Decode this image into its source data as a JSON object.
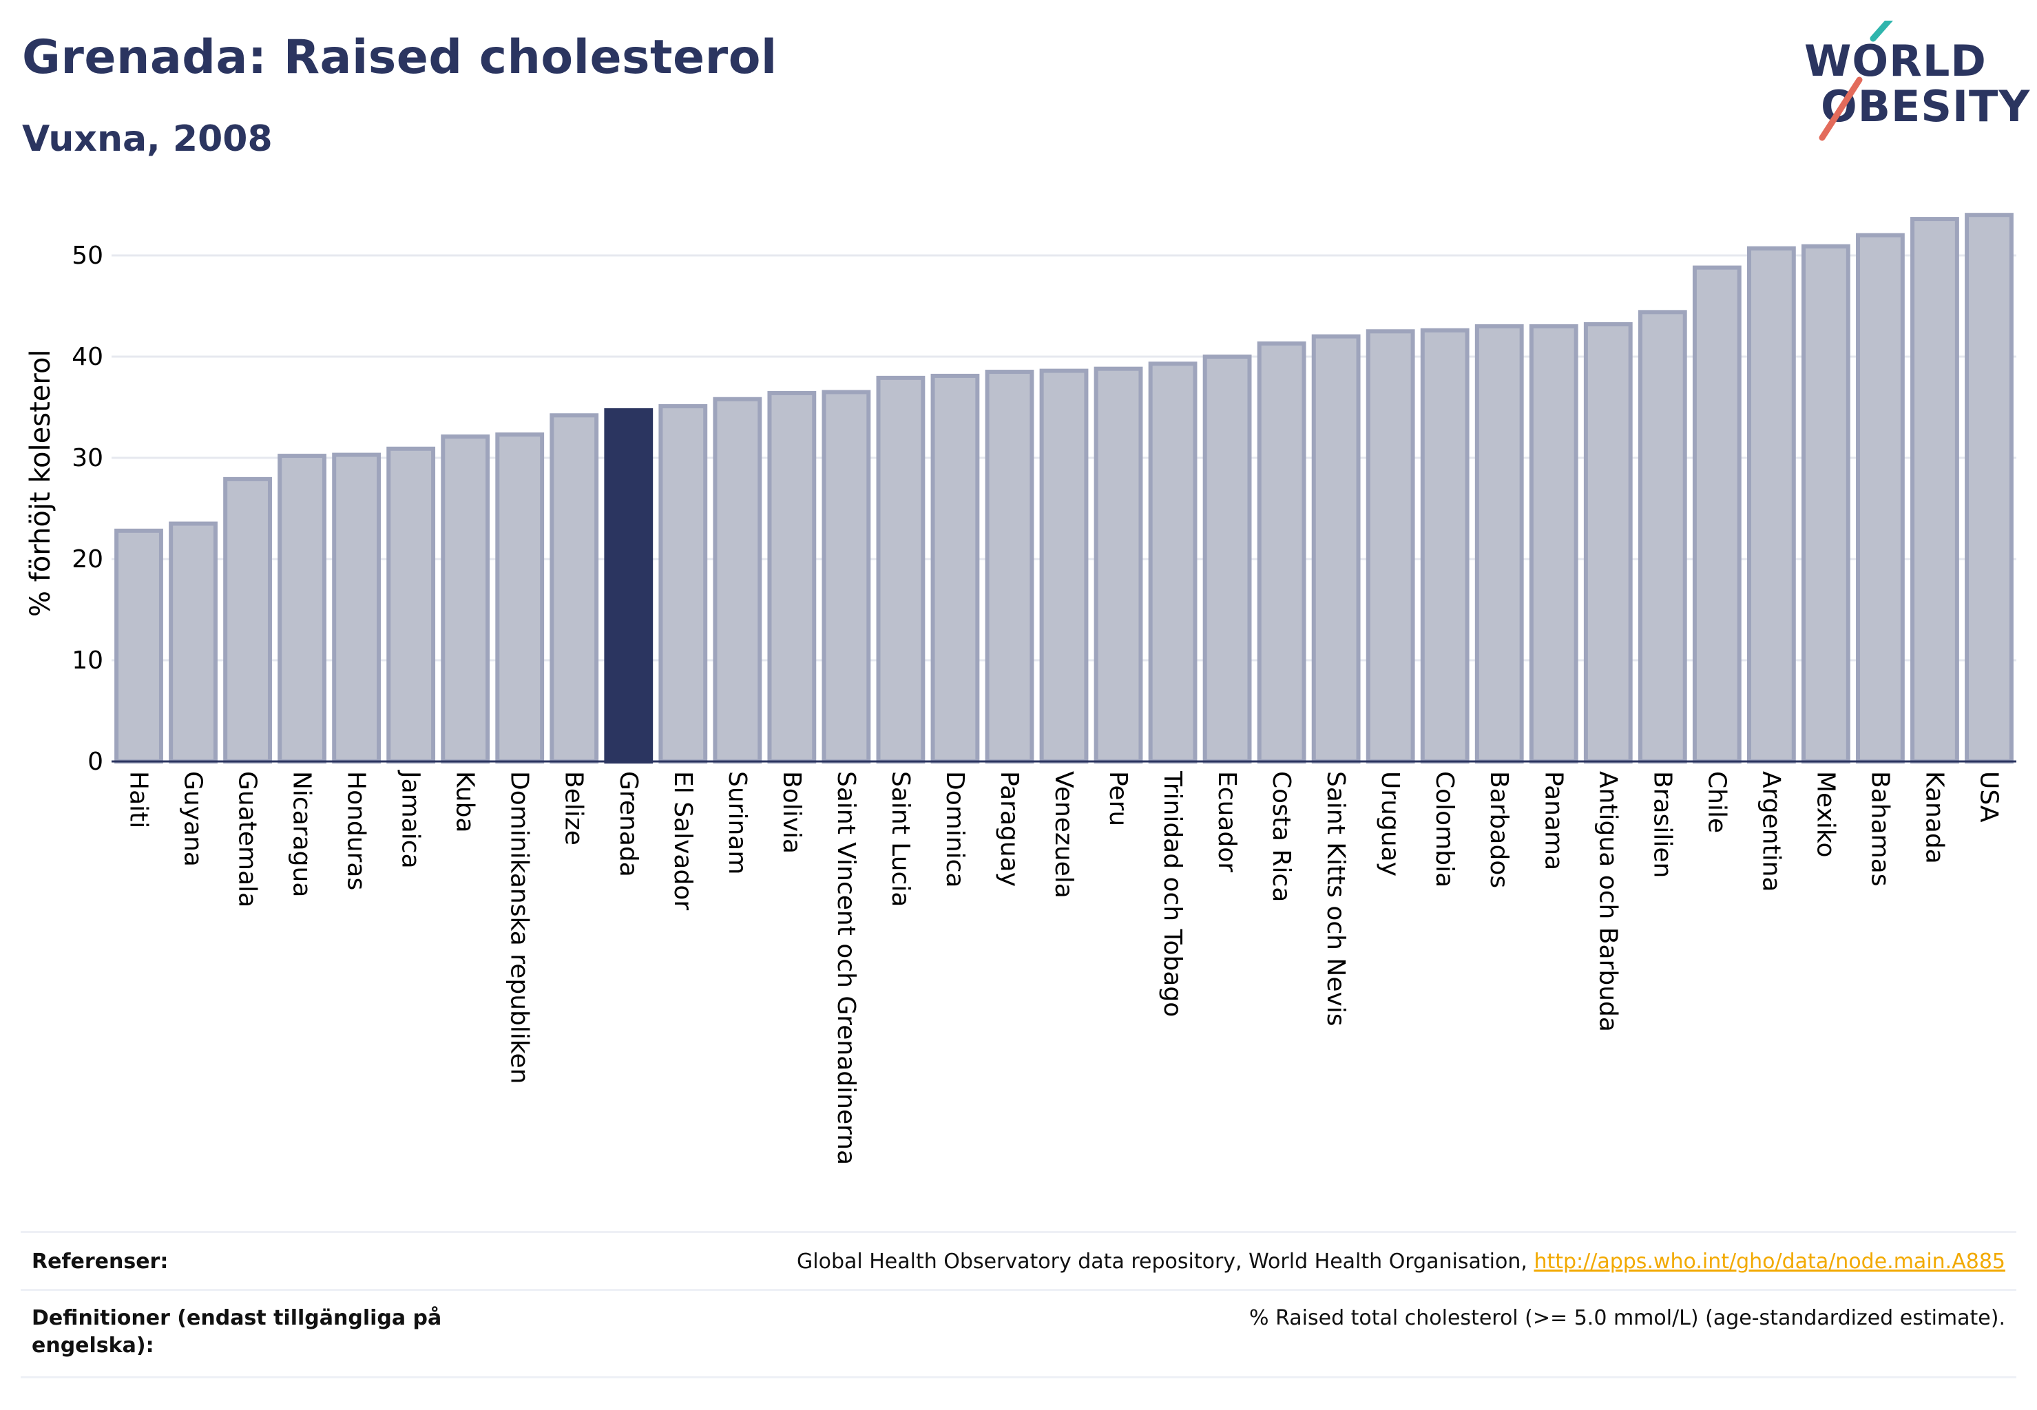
{
  "title": "Grenada: Raised cholesterol",
  "subtitle": "Vuxna, 2008",
  "logo": {
    "line1": "WORLD",
    "line2": "OBESITY"
  },
  "colors": {
    "accent": "#2b3560",
    "bar_fill": "#bcc0cd",
    "bar_stroke": "#9ea4bc",
    "link": "#f2a900"
  },
  "chart_data": {
    "type": "bar",
    "ylabel": "% förhöjt kolesterol",
    "ylim": [
      0,
      55
    ],
    "yticks": [
      0,
      10,
      20,
      30,
      40,
      50
    ],
    "grid": true,
    "highlight": "Grenada",
    "categories": [
      "Haiti",
      "Guyana",
      "Guatemala",
      "Nicaragua",
      "Honduras",
      "Jamaica",
      "Kuba",
      "Dominikanska republiken",
      "Belize",
      "Grenada",
      "El Salvador",
      "Surinam",
      "Bolivia",
      "Saint Vincent och Grenadinerna",
      "Saint Lucia",
      "Dominica",
      "Paraguay",
      "Venezuela",
      "Peru",
      "Trinidad och Tobago",
      "Ecuador",
      "Costa Rica",
      "Saint Kitts och Nevis",
      "Uruguay",
      "Colombia",
      "Barbados",
      "Panama",
      "Antigua och Barbuda",
      "Brasilien",
      "Chile",
      "Argentina",
      "Mexiko",
      "Bahamas",
      "Kanada",
      "USA"
    ],
    "values": [
      22.8,
      23.5,
      27.9,
      30.2,
      30.3,
      30.9,
      32.1,
      32.3,
      34.2,
      34.7,
      35.1,
      35.8,
      36.4,
      36.5,
      37.9,
      38.1,
      38.5,
      38.6,
      38.8,
      39.3,
      40.0,
      41.3,
      42.0,
      42.5,
      42.6,
      43.0,
      43.0,
      43.2,
      44.4,
      48.8,
      50.7,
      50.9,
      52.0,
      53.6,
      54.0
    ]
  },
  "footer": {
    "references_label": "Referenser:",
    "references_text": "Global Health Observatory data repository, World Health Organisation, ",
    "references_link": "http://apps.who.int/gho/data/node.main.A885",
    "definitions_label": "Definitioner (endast tillgängliga på engelska):",
    "definitions_text": "% Raised total cholesterol (>= 5.0 mmol/L) (age-standardized estimate)."
  }
}
